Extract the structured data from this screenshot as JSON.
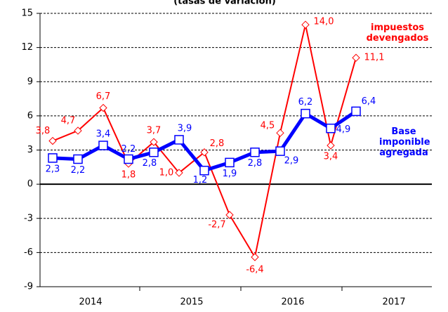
{
  "chart_data": {
    "type": "line",
    "title": "(tasas de variación)",
    "categories": [
      null,
      null,
      null,
      null,
      null,
      null,
      null,
      null,
      null,
      null,
      null,
      null,
      null
    ],
    "x_groups": [
      "2014",
      "2015",
      "2016",
      "2017"
    ],
    "ylim": [
      -9,
      15
    ],
    "yticks": [
      -9,
      -6,
      -3,
      0,
      3,
      6,
      9,
      12,
      15
    ],
    "grid": true,
    "series": [
      {
        "name": "impuestos devengados",
        "color": "#ff0000",
        "marker": "diamond",
        "values": [
          3.8,
          4.7,
          6.7,
          1.8,
          3.7,
          1.0,
          2.8,
          -2.7,
          -6.4,
          4.5,
          14.0,
          3.4,
          11.1
        ],
        "value_labels": [
          "3,8",
          "4,7",
          "6,7",
          "1,8",
          "3,7",
          "1,0",
          "2,8",
          "-2,7",
          "-6,4",
          "4,5",
          "14,0",
          "3,4",
          "11,1"
        ]
      },
      {
        "name": "Base imponible agregada",
        "color": "#0000ff",
        "marker": "square",
        "values": [
          2.3,
          2.2,
          3.4,
          2.2,
          2.8,
          3.9,
          1.2,
          1.9,
          2.8,
          2.9,
          6.2,
          4.9,
          6.4
        ],
        "value_labels": [
          "2,3",
          "2,2",
          "3,4",
          "2,2",
          "2,8",
          "3,9",
          "1,2",
          "1,9",
          "2,8",
          "2,9",
          "6,2",
          "4,9",
          "6,4"
        ]
      }
    ]
  }
}
